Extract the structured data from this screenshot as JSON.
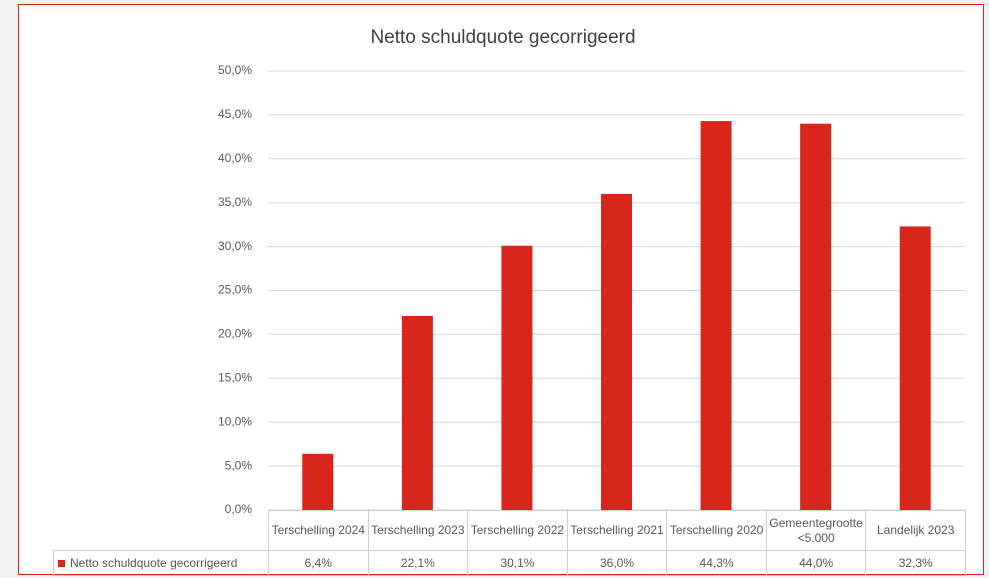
{
  "chart_data": {
    "type": "bar",
    "title": "Netto schuldquote gecorrigeerd",
    "categories": [
      "Terschelling 2024",
      "Terschelling 2023",
      "Terschelling 2022",
      "Terschelling 2021",
      "Terschelling 2020",
      "Gemeentegrootte <5.000",
      "Landelijk 2023"
    ],
    "series": [
      {
        "name": "Netto schuldquote gecorrigeerd",
        "color": "#d9261c",
        "values": [
          6.4,
          22.1,
          30.1,
          36.0,
          44.3,
          44.0,
          32.3
        ],
        "value_labels": [
          "6,4%",
          "22,1%",
          "30,1%",
          "36,0%",
          "44,3%",
          "44,0%",
          "32,3%"
        ]
      }
    ],
    "ylim": [
      0,
      50
    ],
    "yticks": [
      {
        "value": 0,
        "label": "0,0%"
      },
      {
        "value": 5,
        "label": "5,0%"
      },
      {
        "value": 10,
        "label": "10,0%"
      },
      {
        "value": 15,
        "label": "15,0%"
      },
      {
        "value": 20,
        "label": "20,0%"
      },
      {
        "value": 25,
        "label": "25,0%"
      },
      {
        "value": 30,
        "label": "30,0%"
      },
      {
        "value": 35,
        "label": "35,0%"
      },
      {
        "value": 40,
        "label": "40,0%"
      },
      {
        "value": 45,
        "label": "45,0%"
      },
      {
        "value": 50,
        "label": "50,0%"
      }
    ],
    "grid": true
  }
}
